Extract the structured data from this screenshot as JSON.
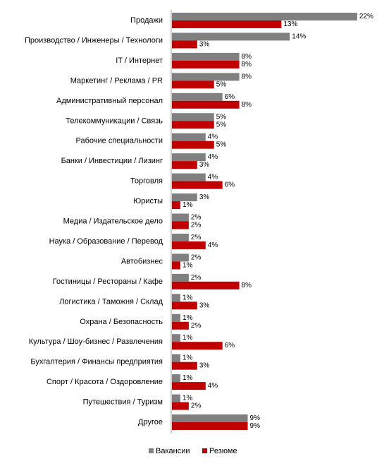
{
  "chart_data": {
    "type": "bar",
    "orientation": "horizontal",
    "categories": [
      "Продажи",
      "Производство / Инженеры  / Технологи",
      "IT / Интернет",
      "Маркетинг / Реклама / PR",
      "Административный  персонал",
      "Телекоммуникации / Связь",
      "Рабочие специальности",
      "Банки / Инвестиции  / Лизинг",
      "Торговля",
      "Юристы",
      "Медиа / Издательское дело",
      "Наука / Образование / Перевод",
      "Автобизнес",
      "Гостиницы / Рестораны / Кафе",
      "Логистика / Таможня / Склад",
      "Охрана / Безопасность",
      "Культура / Шоу-бизнес / Развлечения",
      "Бухгалтерия / Финансы предприятия",
      "Спорт / Красота / Оздоровление",
      "Путешествия  / Туризм",
      "Другое"
    ],
    "series": [
      {
        "name": "Вакансии",
        "color": "#808080",
        "values": [
          22,
          14,
          8,
          8,
          6,
          5,
          4,
          4,
          4,
          3,
          2,
          2,
          2,
          2,
          1,
          1,
          1,
          1,
          1,
          1,
          9
        ],
        "labels": [
          "22%",
          "14%",
          "8%",
          "8%",
          "6%",
          "5%",
          "4%",
          "4%",
          "4%",
          "3%",
          "2%",
          "2%",
          "2%",
          "2%",
          "1%",
          "1%",
          "1%",
          "1%",
          "1%",
          "1%",
          "9%"
        ]
      },
      {
        "name": "Резюме",
        "color": "#c00000",
        "values": [
          13,
          3,
          8,
          5,
          8,
          5,
          5,
          3,
          6,
          1,
          2,
          4,
          1,
          8,
          3,
          2,
          6,
          3,
          4,
          2,
          9
        ],
        "labels": [
          "13%",
          "3%",
          "8%",
          "5%",
          "8%",
          "5%",
          "5%",
          "3%",
          "6%",
          "1%",
          "2%",
          "4%",
          "1%",
          "8%",
          "3%",
          "2%",
          "6%",
          "3%",
          "4%",
          "2%",
          "9%"
        ]
      }
    ],
    "xlim": [
      0,
      22
    ],
    "grid": false,
    "legend": "bottom"
  }
}
